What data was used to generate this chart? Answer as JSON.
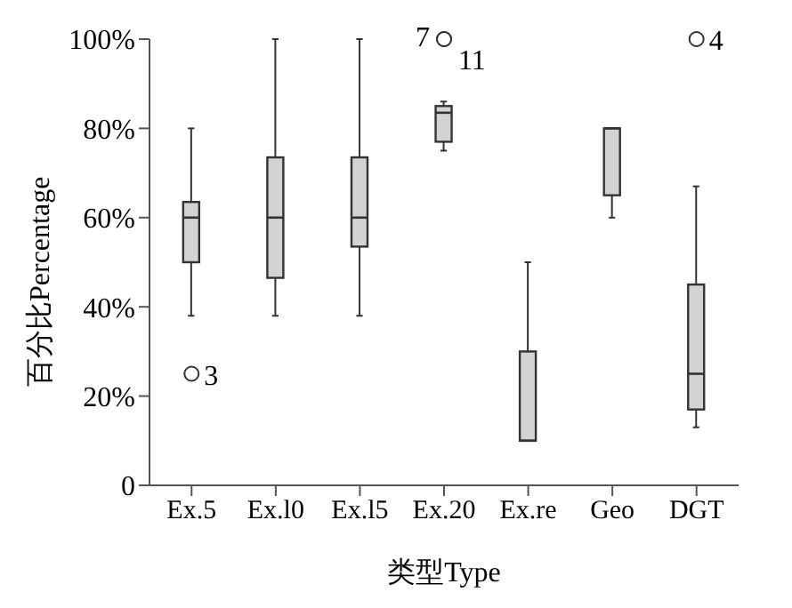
{
  "chart_data": {
    "type": "box",
    "xlabel": "类型Type",
    "ylabel": "百分比Percentage",
    "categories": [
      "Ex.5",
      "Ex.l0",
      "Ex.l5",
      "Ex.20",
      "Ex.re",
      "Geo",
      "DGT"
    ],
    "color": "#d3d3d3",
    "boxes": [
      {
        "low": 38,
        "q1": 50,
        "median": 60,
        "q3": 63.5,
        "high": 80,
        "outliers": [
          25
        ]
      },
      {
        "low": 38,
        "q1": 46.5,
        "median": 60,
        "q3": 73.5,
        "high": 100
      },
      {
        "low": 38,
        "q1": 53.5,
        "median": 60,
        "q3": 73.5,
        "high": 100
      },
      {
        "low": 75,
        "q1": 77,
        "median": 83.5,
        "q3": 85,
        "high": 86,
        "outliers": [
          100,
          100
        ]
      },
      {
        "low": 10,
        "q1": 10,
        "median": 10,
        "q3": 30,
        "high": 50
      },
      {
        "low": 60,
        "q1": 65,
        "median": 80,
        "q3": 80,
        "high": 80
      },
      {
        "low": 13,
        "q1": 17,
        "median": 25,
        "q3": 45,
        "high": 67,
        "outliers": [
          100
        ]
      }
    ],
    "ylim": [
      0,
      100
    ],
    "yticks": [
      {
        "value": 0,
        "label": "0"
      },
      {
        "value": 20,
        "label": "20%"
      },
      {
        "value": 40,
        "label": "40%"
      },
      {
        "value": 60,
        "label": "60%"
      },
      {
        "value": 80,
        "label": "80%"
      },
      {
        "value": 100,
        "label": "100%"
      }
    ],
    "annotations": [
      "3",
      "7",
      "11",
      "4"
    ],
    "grid": false,
    "legend": false
  }
}
